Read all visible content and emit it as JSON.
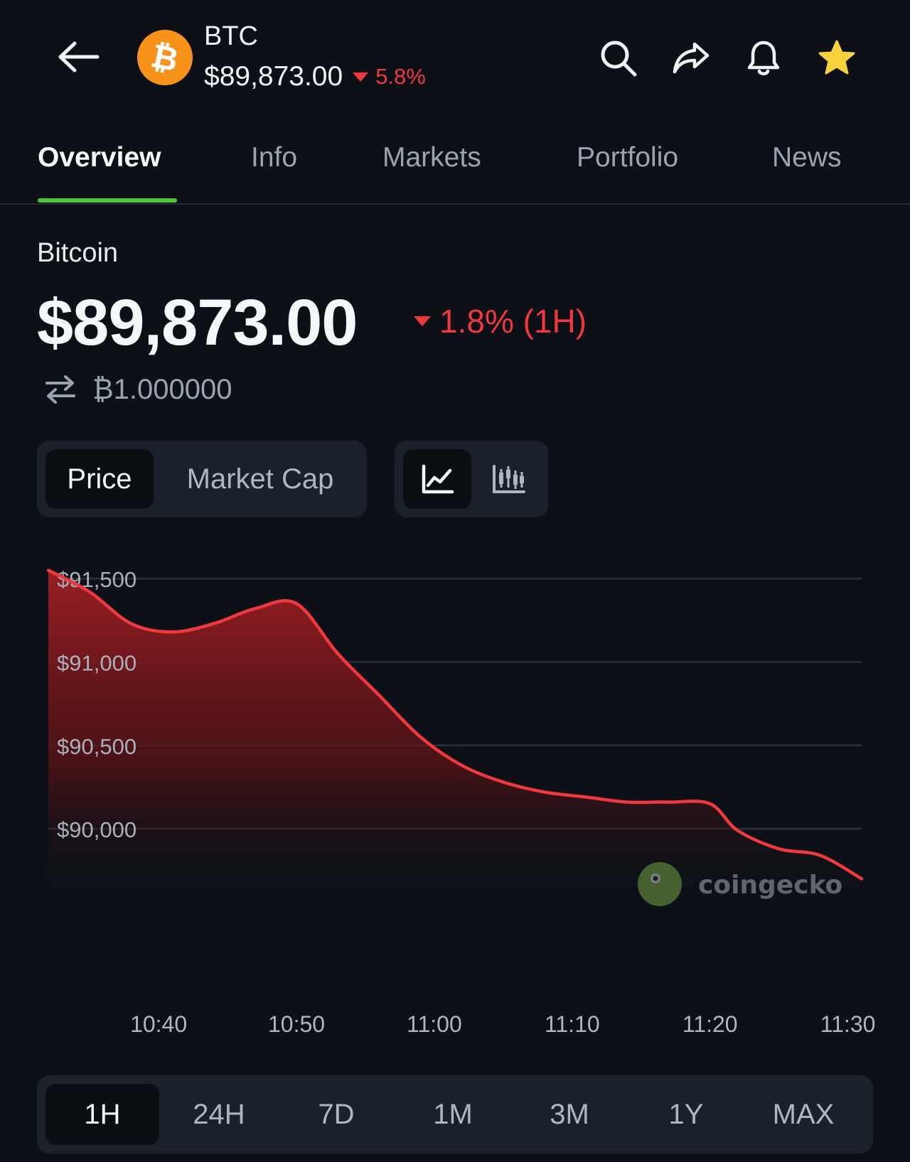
{
  "header": {
    "symbol": "BTC",
    "price": "$89,873.00",
    "change": "5.8%",
    "coin_logo_glyph": "₿",
    "icons": [
      "back-arrow-icon",
      "search-icon",
      "share-icon",
      "bell-icon",
      "star-icon"
    ],
    "favorite_color": "#f7d23e"
  },
  "tabs": [
    {
      "label": "Overview",
      "active": true
    },
    {
      "label": "Info"
    },
    {
      "label": "Markets"
    },
    {
      "label": "Portfolio"
    },
    {
      "label": "News"
    }
  ],
  "coin": {
    "name": "Bitcoin",
    "price": "$89,873.00",
    "change": "1.8% (1H)",
    "btc_amount": "₿1.000000"
  },
  "metric_toggle": {
    "price_label": "Price",
    "market_cap_label": "Market Cap",
    "selected": "Price"
  },
  "chart_type_toggle": {
    "options": [
      "line-chart-icon",
      "candlestick-chart-icon"
    ],
    "selected": "line-chart-icon"
  },
  "chart_data": {
    "type": "area",
    "x": [
      "10:32",
      "10:35",
      "10:38",
      "10:41",
      "10:44",
      "10:47",
      "10:50",
      "10:53",
      "10:56",
      "10:59",
      "11:02",
      "11:05",
      "11:08",
      "11:11",
      "11:14",
      "11:17",
      "11:20",
      "11:22",
      "11:25",
      "11:28",
      "11:31"
    ],
    "values": [
      91550,
      91420,
      91230,
      91180,
      91230,
      91320,
      91350,
      91050,
      90800,
      90550,
      90380,
      90280,
      90220,
      90190,
      90160,
      90160,
      90150,
      89990,
      89880,
      89840,
      89700
    ],
    "ylim": [
      89600,
      91560
    ],
    "yticks": [
      {
        "value": 91500,
        "label": "$91,500"
      },
      {
        "value": 91000,
        "label": "$91,000"
      },
      {
        "value": 90500,
        "label": "$90,500"
      },
      {
        "value": 90000,
        "label": "$90,000"
      }
    ],
    "xticks": [
      "10:40",
      "10:50",
      "11:00",
      "11:10",
      "11:20",
      "11:30"
    ],
    "line_color": "#f0383f",
    "grid": true,
    "watermark": "coingecko"
  },
  "range": {
    "options": [
      "1H",
      "24H",
      "7D",
      "1M",
      "3M",
      "1Y",
      "MAX"
    ],
    "selected": "1H"
  }
}
